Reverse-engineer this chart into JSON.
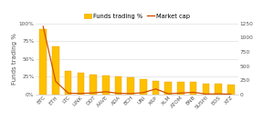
{
  "categories": [
    "BTC",
    "ETH",
    "LTC",
    "LINK",
    "DOT",
    "AAVE",
    "ADA",
    "BCH",
    "UNI",
    "XRP",
    "XLM",
    "ATOM",
    "BNB",
    "SUSHI",
    "EOS",
    "XTZ"
  ],
  "funds_pct": [
    92,
    68,
    33,
    30,
    28,
    27,
    25,
    24,
    22,
    19,
    18,
    17,
    17,
    15,
    15,
    14
  ],
  "market_cap": [
    1200,
    230,
    20,
    15,
    25,
    45,
    18,
    12,
    30,
    95,
    10,
    22,
    35,
    5,
    8,
    3
  ],
  "bar_color": "#FFC000",
  "bar_edge_color": "#E8A000",
  "line_color": "#D05000",
  "bg_color": "#FFFFFF",
  "ylabel_left": "Funds trading %",
  "ylim_left": [
    0,
    100
  ],
  "ylim_right": [
    0,
    1250
  ],
  "yticks_left": [
    0,
    25,
    50,
    75,
    100
  ],
  "yticks_right": [
    0,
    250,
    500,
    750,
    1000,
    1250
  ],
  "legend_labels": [
    "Funds trading %",
    "Market cap"
  ],
  "axis_fontsize": 5.0,
  "tick_fontsize": 4.2,
  "legend_fontsize": 4.8
}
